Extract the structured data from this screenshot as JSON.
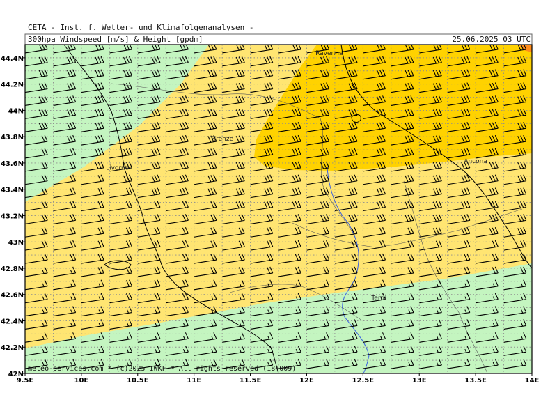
{
  "header": {
    "title": "CETA - Inst. f. Wetter- und Klimafolgenanalysen -",
    "subtitle": "300hpa Windspeed [m/s] & Height [gpdm]",
    "datetime": "25.06.2025 03 UTC"
  },
  "footer": {
    "copyright": "meteo-services.com * (c)2025 IWKF * All rights reserved (18+009)"
  },
  "axes": {
    "lon_ticks": [
      "9.5E",
      "10E",
      "10.5E",
      "11E",
      "11.5E",
      "12E",
      "12.5E",
      "13E",
      "13.5E",
      "14E"
    ],
    "lat_ticks": [
      "44.4N",
      "44.2N",
      "44N",
      "43.8N",
      "43.6N",
      "43.4N",
      "43.2N",
      "43N",
      "42.8N",
      "42.6N",
      "42.4N",
      "42.2N",
      "42N"
    ]
  },
  "cities": [
    {
      "name": "Ravenna",
      "lon": 12.2,
      "lat": 44.42
    },
    {
      "name": "Firenze",
      "lon": 11.25,
      "lat": 43.77
    },
    {
      "name": "Livorno",
      "lon": 10.32,
      "lat": 43.55
    },
    {
      "name": "Ancona",
      "lon": 13.5,
      "lat": 43.6
    },
    {
      "name": "Terni",
      "lon": 12.64,
      "lat": 42.56
    }
  ],
  "colors": {
    "green": "#c4f5c0",
    "yellow": "#ffe572",
    "orange": "#ffd200",
    "red_corner": "#ff8c1a",
    "barb": "#000000",
    "grid": "#8d8d8d",
    "river": "#3a5fe0",
    "coast": "#000000",
    "border": "#555555"
  },
  "wind_barbs": {
    "spacing_deg": 0.25,
    "direction": "westerly"
  }
}
